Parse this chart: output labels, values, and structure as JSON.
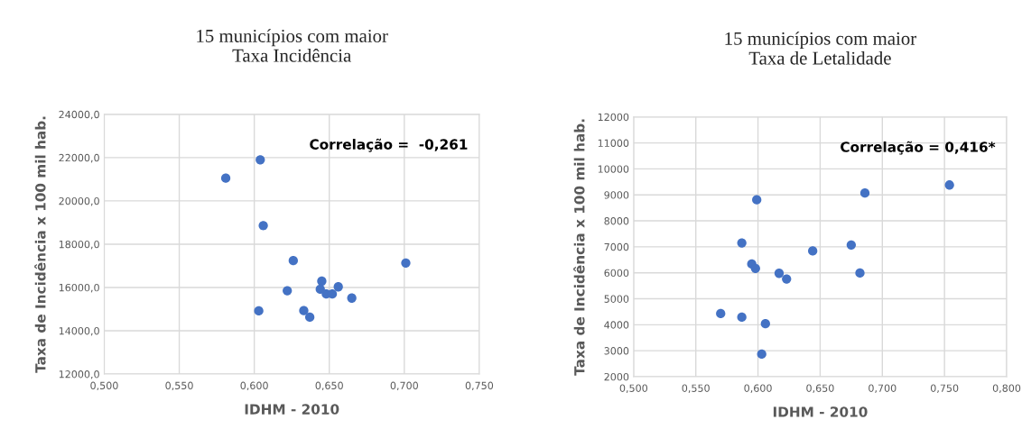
{
  "chart_data": [
    {
      "type": "scatter",
      "title": "15 municípios com maior\nTaxa Incidência",
      "xlabel": "IDHM - 2010",
      "ylabel": "Taxa de Incidência x 100 mil hab.",
      "annotations": [
        "Correlação =  -0,261"
      ],
      "series": [
        {
          "color": "#4472c4",
          "x": [
            0.581,
            0.604,
            0.606,
            0.626,
            0.622,
            0.603,
            0.633,
            0.637,
            0.645,
            0.644,
            0.648,
            0.652,
            0.656,
            0.665,
            0.701
          ],
          "values": [
            21050,
            21900,
            18860,
            17240,
            15850,
            14920,
            14930,
            14630,
            16290,
            15920,
            15700,
            15700,
            16030,
            15510,
            17130
          ]
        }
      ],
      "xlim": [
        0.5,
        0.75
      ],
      "xticks": [
        {
          "value": 0.5,
          "label": "0,500"
        },
        {
          "value": 0.55,
          "label": "0,550"
        },
        {
          "value": 0.6,
          "label": "0,600"
        },
        {
          "value": 0.65,
          "label": "0,650"
        },
        {
          "value": 0.7,
          "label": "0,700"
        },
        {
          "value": 0.75,
          "label": "0,750"
        }
      ],
      "ylim": [
        12000,
        24000
      ],
      "yticks": [
        {
          "value": 12000,
          "label": "12000,0"
        },
        {
          "value": 14000,
          "label": "14000,0"
        },
        {
          "value": 16000,
          "label": "16000,0"
        },
        {
          "value": 18000,
          "label": "18000,0"
        },
        {
          "value": 20000,
          "label": "20000,0"
        },
        {
          "value": 22000,
          "label": "22000,0"
        },
        {
          "value": 24000,
          "label": "24000,0"
        }
      ],
      "grid": true,
      "marker": "circle"
    },
    {
      "type": "scatter",
      "title": "15 municípios com maior\nTaxa de Letalidade",
      "xlabel": "IDHM - 2010",
      "ylabel": "Taxa de Incidência x 100 mil hab.",
      "annotations": [
        "Correlação = 0,416*"
      ],
      "series": [
        {
          "color": "#4472c4",
          "x": [
            0.57,
            0.587,
            0.587,
            0.595,
            0.598,
            0.599,
            0.603,
            0.606,
            0.617,
            0.623,
            0.644,
            0.675,
            0.682,
            0.686,
            0.754
          ],
          "values": [
            4430,
            4290,
            7150,
            6340,
            6170,
            8810,
            2870,
            4040,
            5980,
            5760,
            6840,
            7070,
            5990,
            9070,
            9380
          ]
        }
      ],
      "xlim": [
        0.5,
        0.8
      ],
      "xticks": [
        {
          "value": 0.5,
          "label": "0,500"
        },
        {
          "value": 0.55,
          "label": "0,550"
        },
        {
          "value": 0.6,
          "label": "0,600"
        },
        {
          "value": 0.65,
          "label": "0,650"
        },
        {
          "value": 0.7,
          "label": "0,700"
        },
        {
          "value": 0.75,
          "label": "0,750"
        },
        {
          "value": 0.8,
          "label": "0,800"
        }
      ],
      "ylim": [
        2000,
        12000
      ],
      "yticks": [
        2000,
        3000,
        4000,
        5000,
        6000,
        7000,
        8000,
        9000,
        10000,
        11000,
        12000
      ],
      "grid": true,
      "marker": "circle"
    }
  ]
}
